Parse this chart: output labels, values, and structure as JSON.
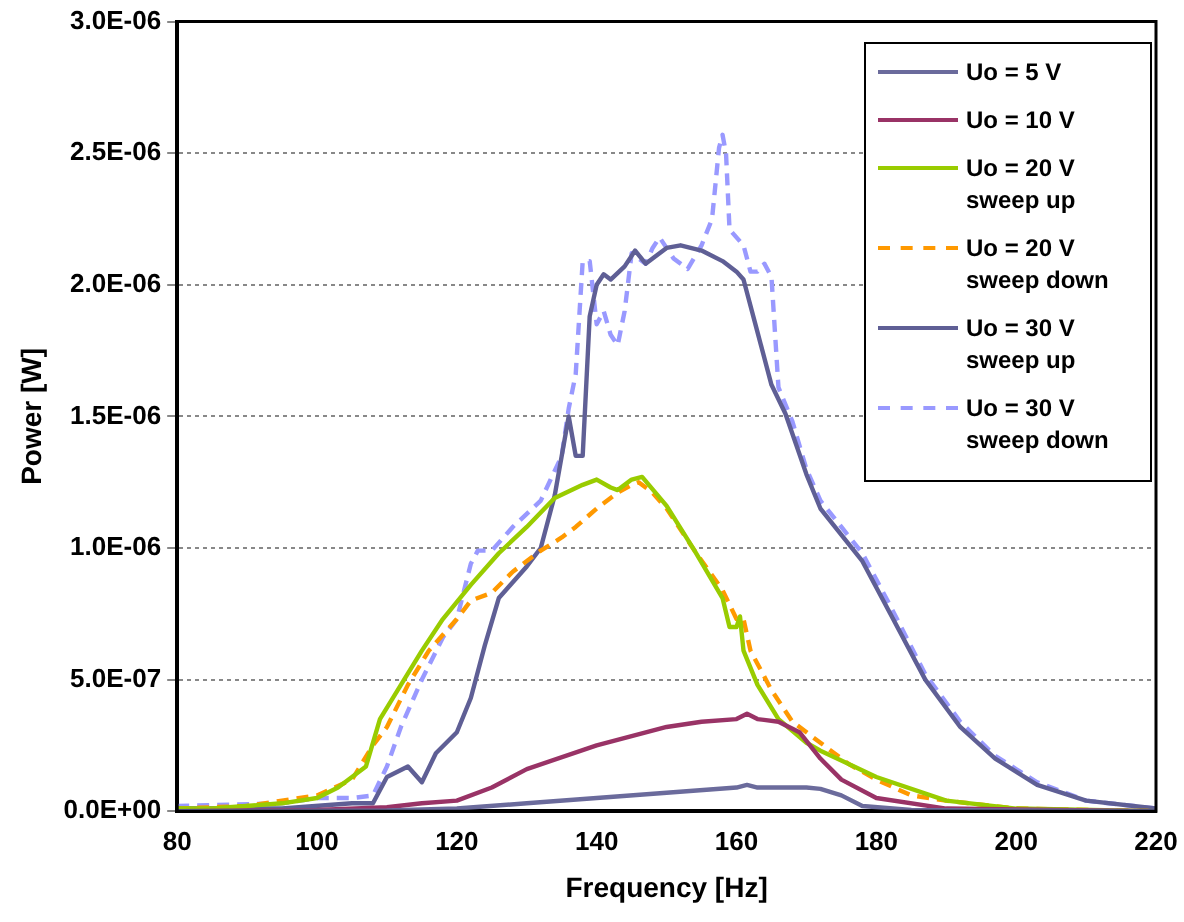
{
  "chart_data": {
    "type": "line",
    "xlabel": "Frequency [Hz]",
    "ylabel": "Power [W]",
    "xlim": [
      80,
      220
    ],
    "xticks": [
      80,
      100,
      120,
      140,
      160,
      180,
      200,
      220
    ],
    "ylim": [
      0,
      3e-06
    ],
    "yticks": [
      {
        "value": 0,
        "label": "0.0E+00"
      },
      {
        "value": 5e-07,
        "label": "5.0E-07"
      },
      {
        "value": 1e-06,
        "label": "1.0E-06"
      },
      {
        "value": 1.5e-06,
        "label": "1.5E-06"
      },
      {
        "value": 2e-06,
        "label": "2.0E-06"
      },
      {
        "value": 2.5e-06,
        "label": "2.5E-06"
      },
      {
        "value": 3e-06,
        "label": "3.0E-06"
      }
    ],
    "grid": "y",
    "legend": "top right",
    "marker": "none",
    "series": [
      {
        "name": "Uo = 5 V",
        "color": "#6b6b9c",
        "line_style": "solid",
        "x": [
          80,
          110,
          120,
          130,
          140,
          150,
          160,
          161.5,
          163,
          170,
          172,
          175,
          178,
          185,
          220
        ],
        "values": [
          0,
          3e-09,
          1e-08,
          3e-08,
          5e-08,
          7e-08,
          9e-08,
          1e-07,
          9e-08,
          9e-08,
          8.5e-08,
          6e-08,
          2e-08,
          5e-09,
          0
        ]
      },
      {
        "name": "Uo = 10 V",
        "color": "#993366",
        "line_style": "solid",
        "x": [
          80,
          100,
          110,
          115,
          120,
          125,
          130,
          140,
          150,
          155,
          160,
          161.5,
          163,
          166,
          169,
          172,
          175,
          180,
          190,
          220
        ],
        "values": [
          0,
          5e-09,
          1.5e-08,
          3e-08,
          4e-08,
          9e-08,
          1.6e-07,
          2.5e-07,
          3.2e-07,
          3.4e-07,
          3.5e-07,
          3.7e-07,
          3.5e-07,
          3.4e-07,
          3e-07,
          2e-07,
          1.2e-07,
          5e-08,
          1e-08,
          0
        ]
      },
      {
        "name": "Uo = 20 V sweep up",
        "color": "#99cc00",
        "line_style": "solid",
        "x": [
          80,
          85,
          95,
          100,
          103,
          105,
          107,
          109,
          112,
          115,
          118,
          122,
          126,
          130,
          134,
          138,
          140,
          142,
          143,
          145,
          146.5,
          150,
          154,
          158,
          159,
          160,
          160.5,
          161,
          163,
          166,
          170,
          172,
          180,
          190,
          200,
          220
        ],
        "values": [
          1e-08,
          1e-08,
          3e-08,
          5e-08,
          9e-08,
          1.3e-07,
          1.7e-07,
          3.5e-07,
          4.8e-07,
          6.1e-07,
          7.3e-07,
          8.6e-07,
          9.8e-07,
          1.08e-06,
          1.19e-06,
          1.24e-06,
          1.26e-06,
          1.23e-06,
          1.22e-06,
          1.26e-06,
          1.27e-06,
          1.16e-06,
          9.9e-07,
          8.1e-07,
          7e-07,
          7e-07,
          7.4e-07,
          6.1e-07,
          4.8e-07,
          3.5e-07,
          2.6e-07,
          2.3e-07,
          1.3e-07,
          4e-08,
          1e-08,
          0
        ]
      },
      {
        "name": "Uo = 20 V sweep down",
        "color": "#ff9900",
        "line_style": "dashed",
        "x": [
          80,
          90,
          100,
          105,
          108,
          110,
          113,
          116,
          120,
          122,
          125,
          128,
          132,
          135,
          137,
          140,
          143,
          145,
          146,
          148,
          150,
          154,
          158,
          160,
          161,
          162,
          165,
          168,
          172,
          176,
          180,
          185,
          190,
          200,
          220
        ],
        "values": [
          1e-08,
          2e-08,
          6e-08,
          1.2e-07,
          2.5e-07,
          3.2e-07,
          4.8e-07,
          6.1e-07,
          7.3e-07,
          8e-07,
          8.3e-07,
          9.1e-07,
          9.9e-07,
          1.04e-06,
          1.08e-06,
          1.15e-06,
          1.21e-06,
          1.24e-06,
          1.25e-06,
          1.21e-06,
          1.15e-06,
          9.9e-07,
          8.4e-07,
          7.3e-07,
          7.3e-07,
          6.1e-07,
          4.6e-07,
          3.4e-07,
          2.6e-07,
          1.8e-07,
          1.2e-07,
          6e-08,
          4e-08,
          1e-08,
          0
        ]
      },
      {
        "name": "Uo = 30 V sweep up",
        "color": "#5f5f95",
        "line_style": "solid",
        "x": [
          80,
          95,
          105,
          108,
          110,
          113,
          115,
          117,
          120,
          122,
          124,
          126,
          128,
          130,
          132,
          134,
          136,
          137,
          138,
          139,
          140,
          141,
          142,
          144,
          145.5,
          147,
          150,
          152,
          155,
          158,
          160,
          161,
          163,
          165,
          167,
          170,
          172,
          175,
          178,
          182,
          187,
          192,
          197,
          203,
          210,
          220
        ],
        "values": [
          1e-08,
          1e-08,
          3e-08,
          3e-08,
          1.3e-07,
          1.7e-07,
          1.1e-07,
          2.2e-07,
          3e-07,
          4.3e-07,
          6.3e-07,
          8.1e-07,
          8.7e-07,
          9.3e-07,
          1e-06,
          1.2e-06,
          1.5e-06,
          1.35e-06,
          1.35e-06,
          1.88e-06,
          2e-06,
          2.04e-06,
          2.02e-06,
          2.07e-06,
          2.13e-06,
          2.08e-06,
          2.14e-06,
          2.15e-06,
          2.13e-06,
          2.09e-06,
          2.05e-06,
          2.02e-06,
          1.82e-06,
          1.62e-06,
          1.51e-06,
          1.28e-06,
          1.15e-06,
          1.05e-06,
          9.5e-07,
          7.5e-07,
          5e-07,
          3.2e-07,
          2e-07,
          1e-07,
          4e-08,
          1e-08
        ]
      },
      {
        "name": "Uo = 30 V sweep down",
        "color": "#9999ff",
        "line_style": "dashed",
        "x": [
          80,
          95,
          100,
          105,
          108,
          110,
          112,
          115,
          118,
          120,
          122,
          123,
          125,
          128,
          132,
          135,
          136,
          137,
          138,
          139,
          140,
          141,
          142,
          143,
          144,
          145,
          147,
          148,
          149,
          151,
          153,
          155,
          156.5,
          157.5,
          158,
          158.5,
          159,
          161,
          162,
          163,
          164,
          165,
          166,
          168,
          170,
          172,
          175,
          178,
          182,
          187,
          192,
          197,
          203,
          210,
          220
        ],
        "values": [
          2e-08,
          3e-08,
          5e-08,
          5e-08,
          6e-08,
          1.7e-07,
          3.2e-07,
          5e-07,
          6.6e-07,
          7.3e-07,
          9.4e-07,
          9.9e-07,
          9.9e-07,
          1.08e-06,
          1.18e-06,
          1.35e-06,
          1.53e-06,
          1.66e-06,
          2.09e-06,
          2.09e-06,
          1.85e-06,
          1.9e-06,
          1.81e-06,
          1.77e-06,
          1.9e-06,
          2.12e-06,
          2.08e-06,
          2.14e-06,
          2.18e-06,
          2.1e-06,
          2.06e-06,
          2.15e-06,
          2.25e-06,
          2.52e-06,
          2.57e-06,
          2.5e-06,
          2.21e-06,
          2.15e-06,
          2.05e-06,
          2.05e-06,
          2.08e-06,
          2.03e-06,
          1.61e-06,
          1.48e-06,
          1.3e-06,
          1.18e-06,
          1.08e-06,
          9.8e-07,
          7.8e-07,
          5.2e-07,
          3.4e-07,
          2.1e-07,
          1.1e-07,
          4e-08,
          1e-08
        ]
      }
    ]
  }
}
